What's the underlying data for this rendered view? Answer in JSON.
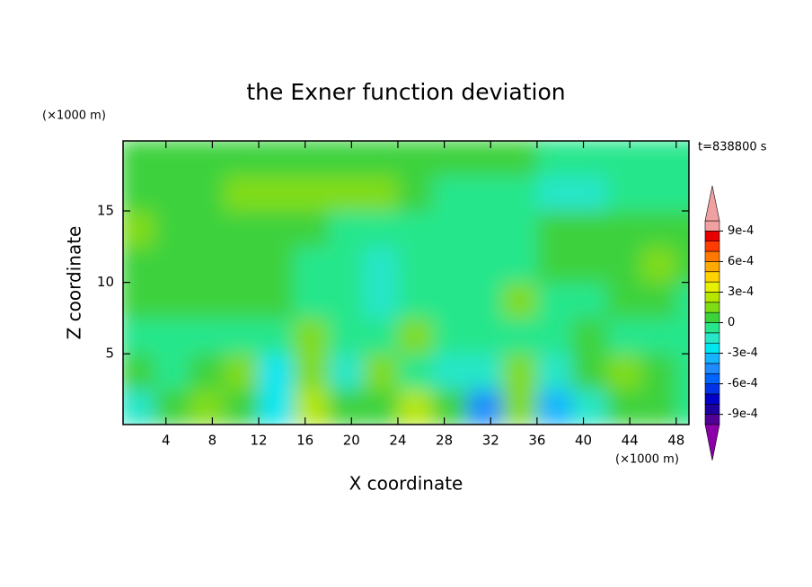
{
  "chart_data": {
    "type": "contour",
    "title": "the Exner function deviation",
    "x_label": "X coordinate",
    "y_label": "Z coordinate",
    "x_unit": "(×1000 m)",
    "y_unit": "(×1000 m)",
    "time_label": "t=838800 s",
    "xlim": [
      0.3,
      49.1
    ],
    "ylim": [
      0.05,
      19.9
    ],
    "xticks": [
      4,
      8,
      12,
      16,
      20,
      24,
      28,
      32,
      36,
      40,
      44,
      48
    ],
    "yticks": [
      5,
      10,
      15
    ],
    "x": [
      1.5,
      4.5,
      7.5,
      10.5,
      13.5,
      16.5,
      19.5,
      22.5,
      25.5,
      28.5,
      31.5,
      34.5,
      37.5,
      40.5,
      43.5,
      46.5,
      49.5
    ],
    "z": [
      1.25,
      3.75,
      6.25,
      8.75,
      11.25,
      13.75,
      16.25,
      18.75
    ],
    "values": [
      [
        -0.00015,
        5e-05,
        0.00015,
        5e-05,
        -0.00025,
        0.00025,
        5e-05,
        5e-05,
        0.00025,
        5e-05,
        -0.00045,
        0.00015,
        -0.00035,
        -0.00015,
        5e-05,
        5e-05,
        -5e-05
      ],
      [
        5e-05,
        -5e-05,
        5e-05,
        0.00015,
        -0.00025,
        0.00015,
        -0.00015,
        0.00015,
        -5e-05,
        -0.00015,
        -0.00015,
        0.00015,
        -0.00015,
        5e-05,
        0.00015,
        5e-05,
        -5e-05
      ],
      [
        -5e-05,
        -5e-05,
        -5e-05,
        -5e-05,
        -5e-05,
        0.00015,
        -5e-05,
        -5e-05,
        0.00015,
        -5e-05,
        -5e-05,
        -5e-05,
        -5e-05,
        5e-05,
        -5e-05,
        -5e-05,
        -5e-05
      ],
      [
        5e-05,
        5e-05,
        5e-05,
        5e-05,
        5e-05,
        -5e-05,
        -5e-05,
        -0.00015,
        -5e-05,
        -5e-05,
        -5e-05,
        0.00015,
        -5e-05,
        -5e-05,
        5e-05,
        5e-05,
        -5e-05
      ],
      [
        5e-05,
        5e-05,
        5e-05,
        5e-05,
        5e-05,
        -5e-05,
        -5e-05,
        -0.00015,
        -5e-05,
        -5e-05,
        -5e-05,
        -5e-05,
        5e-05,
        5e-05,
        5e-05,
        0.00015,
        5e-05
      ],
      [
        0.00015,
        5e-05,
        5e-05,
        5e-05,
        5e-05,
        5e-05,
        -5e-05,
        -5e-05,
        -5e-05,
        -5e-05,
        -5e-05,
        -5e-05,
        5e-05,
        5e-05,
        5e-05,
        5e-05,
        5e-05
      ],
      [
        5e-05,
        5e-05,
        5e-05,
        0.00015,
        0.00015,
        0.00015,
        0.00015,
        0.00015,
        5e-05,
        -5e-05,
        -5e-05,
        -5e-05,
        -0.00015,
        -0.00015,
        -5e-05,
        -5e-05,
        -5e-05
      ],
      [
        5e-05,
        5e-05,
        5e-05,
        5e-05,
        5e-05,
        5e-05,
        5e-05,
        5e-05,
        5e-05,
        5e-05,
        5e-05,
        5e-05,
        -5e-05,
        -5e-05,
        -5e-05,
        -5e-05,
        -5e-05
      ]
    ],
    "levels": [
      -0.001,
      -0.0009,
      -0.0008,
      -0.0007,
      -0.0006,
      -0.0005,
      -0.0004,
      -0.0003,
      -0.0002,
      -0.0001,
      0,
      0.0001,
      0.0002,
      0.0003,
      0.0004,
      0.0005,
      0.0006,
      0.0007,
      0.0008,
      0.0009,
      0.001
    ],
    "colors": [
      "#8c00aa",
      "#500096",
      "#1e00a0",
      "#0000c8",
      "#0032e6",
      "#0064ff",
      "#1e8cff",
      "#14b4ff",
      "#00e6f0",
      "#28e6c8",
      "#28e68c",
      "#3cd23c",
      "#80dc14",
      "#b4e600",
      "#e6f000",
      "#ffd200",
      "#ffaa00",
      "#ff7800",
      "#ff3c00",
      "#e60000",
      "#f0a0a0"
    ],
    "colorbar_ticks": [
      {
        "value": 0.0009,
        "label": "9e-4"
      },
      {
        "value": 0.0006,
        "label": "6e-4"
      },
      {
        "value": 0.0003,
        "label": "3e-4"
      },
      0,
      {
        "value": -0.0003,
        "label": "-3e-4"
      },
      {
        "value": -0.0006,
        "label": "-6e-4"
      },
      {
        "value": -0.0009,
        "label": "-9e-4"
      }
    ]
  }
}
